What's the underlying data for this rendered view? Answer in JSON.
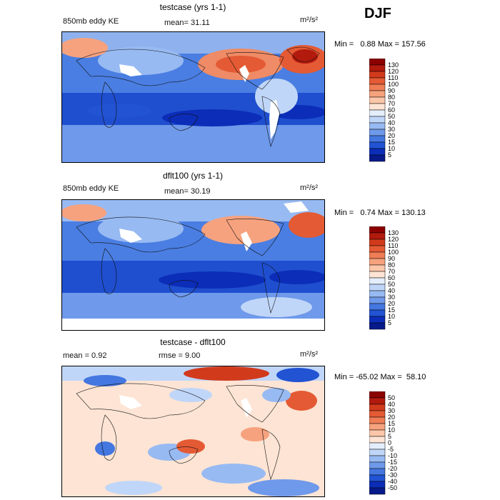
{
  "season": "DJF",
  "panels": [
    {
      "title": "testcase (yrs 1-1)",
      "variable": "850mb eddy KE",
      "stat": "mean=  31.11",
      "stat2": "",
      "units": "m²/s²",
      "minmax": "Min =   0.88 Max = 157.56",
      "colorbar": {
        "labels": [
          "130",
          "120",
          "110",
          "100",
          "90",
          "80",
          "70",
          "60",
          "50",
          "40",
          "30",
          "20",
          "15",
          "10",
          "5"
        ],
        "colors": [
          "#8b0000",
          "#b21a0e",
          "#d23a1c",
          "#e45a34",
          "#ef7d55",
          "#f6a27e",
          "#fbc6a9",
          "#fde4d4",
          "#e4eefc",
          "#c0d6f8",
          "#98baf2",
          "#6f99ea",
          "#4477e0",
          "#2153d3",
          "#0b2db8",
          "#061a8a"
        ]
      }
    },
    {
      "title": "dflt100 (yrs 1-1)",
      "variable": "850mb eddy KE",
      "stat": "mean=  30.19",
      "stat2": "",
      "units": "m²/s²",
      "minmax": "Min =   0.74 Max = 130.13",
      "colorbar": {
        "labels": [
          "130",
          "120",
          "110",
          "100",
          "90",
          "80",
          "70",
          "60",
          "50",
          "40",
          "30",
          "20",
          "15",
          "10",
          "5"
        ],
        "colors": [
          "#8b0000",
          "#b21a0e",
          "#d23a1c",
          "#e45a34",
          "#ef7d55",
          "#f6a27e",
          "#fbc6a9",
          "#fde4d4",
          "#e4eefc",
          "#c0d6f8",
          "#98baf2",
          "#6f99ea",
          "#4477e0",
          "#2153d3",
          "#0b2db8",
          "#061a8a"
        ]
      }
    },
    {
      "title": "testcase - dflt100",
      "variable": "",
      "stat": "mean =    0.92",
      "stat2": "rmse =    9.00",
      "units": "m²/s²",
      "minmax": "Min = -65.02 Max =  58.10",
      "colorbar": {
        "labels": [
          "50",
          "40",
          "30",
          "20",
          "15",
          "10",
          "5",
          "0",
          "-5",
          "-10",
          "-15",
          "-20",
          "-30",
          "-40",
          "-50"
        ],
        "colors": [
          "#8b0000",
          "#b21a0e",
          "#d23a1c",
          "#e45a34",
          "#ef7d55",
          "#f6a27e",
          "#fbc6a9",
          "#fde4d4",
          "#e4eefc",
          "#c0d6f8",
          "#98baf2",
          "#6f99ea",
          "#4477e0",
          "#2153d3",
          "#0b2db8",
          "#061a8a"
        ]
      }
    }
  ]
}
